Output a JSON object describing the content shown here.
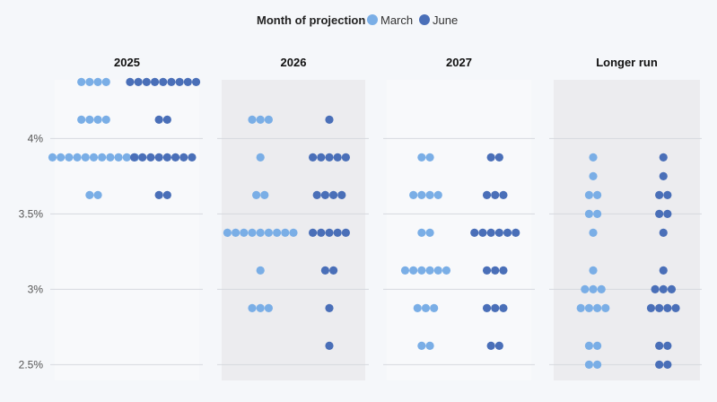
{
  "chart_data": {
    "type": "scatter",
    "legend": {
      "title": "Month of projection",
      "items": [
        {
          "label": "March",
          "color": "#7aaee6"
        },
        {
          "label": "June",
          "color": "#4a6fb8"
        }
      ],
      "placement": "top-center"
    },
    "y_axis": {
      "ticks": [
        {
          "value": 4.0,
          "label": "4%"
        },
        {
          "value": 3.5,
          "label": "3.5%"
        },
        {
          "value": 3.0,
          "label": "3%"
        },
        {
          "value": 2.5,
          "label": "2.5%"
        }
      ],
      "range": [
        2.45,
        4.4
      ]
    },
    "grid": true,
    "panels": [
      {
        "title": "2025",
        "series": [
          {
            "name": "March",
            "points": [
              {
                "y": 4.375,
                "count": 4
              },
              {
                "y": 4.125,
                "count": 4
              },
              {
                "y": 3.875,
                "count": 11
              },
              {
                "y": 3.625,
                "count": 2
              }
            ]
          },
          {
            "name": "June",
            "points": [
              {
                "y": 4.375,
                "count": 9
              },
              {
                "y": 4.125,
                "count": 2
              },
              {
                "y": 3.875,
                "count": 8
              },
              {
                "y": 3.625,
                "count": 2
              }
            ]
          }
        ]
      },
      {
        "title": "2026",
        "series": [
          {
            "name": "March",
            "points": [
              {
                "y": 4.125,
                "count": 3
              },
              {
                "y": 3.875,
                "count": 1
              },
              {
                "y": 3.625,
                "count": 2
              },
              {
                "y": 3.375,
                "count": 9
              },
              {
                "y": 3.125,
                "count": 1
              },
              {
                "y": 2.875,
                "count": 3
              }
            ]
          },
          {
            "name": "June",
            "points": [
              {
                "y": 4.125,
                "count": 1
              },
              {
                "y": 3.875,
                "count": 5
              },
              {
                "y": 3.625,
                "count": 4
              },
              {
                "y": 3.375,
                "count": 5
              },
              {
                "y": 3.125,
                "count": 2
              },
              {
                "y": 2.875,
                "count": 1
              },
              {
                "y": 2.625,
                "count": 1
              }
            ]
          }
        ]
      },
      {
        "title": "2027",
        "series": [
          {
            "name": "March",
            "points": [
              {
                "y": 3.875,
                "count": 2
              },
              {
                "y": 3.625,
                "count": 4
              },
              {
                "y": 3.375,
                "count": 2
              },
              {
                "y": 3.125,
                "count": 6
              },
              {
                "y": 2.875,
                "count": 3
              },
              {
                "y": 2.625,
                "count": 2
              }
            ]
          },
          {
            "name": "June",
            "points": [
              {
                "y": 3.875,
                "count": 2
              },
              {
                "y": 3.625,
                "count": 3
              },
              {
                "y": 3.375,
                "count": 6
              },
              {
                "y": 3.125,
                "count": 3
              },
              {
                "y": 2.875,
                "count": 3
              },
              {
                "y": 2.625,
                "count": 2
              }
            ]
          }
        ]
      },
      {
        "title": "Longer run",
        "series": [
          {
            "name": "March",
            "points": [
              {
                "y": 3.875,
                "count": 1
              },
              {
                "y": 3.75,
                "count": 1
              },
              {
                "y": 3.625,
                "count": 2
              },
              {
                "y": 3.5,
                "count": 2
              },
              {
                "y": 3.375,
                "count": 1
              },
              {
                "y": 3.125,
                "count": 1
              },
              {
                "y": 3.0,
                "count": 3
              },
              {
                "y": 2.875,
                "count": 4
              },
              {
                "y": 2.625,
                "count": 2
              },
              {
                "y": 2.5,
                "count": 2
              }
            ]
          },
          {
            "name": "June",
            "points": [
              {
                "y": 3.875,
                "count": 1
              },
              {
                "y": 3.75,
                "count": 1
              },
              {
                "y": 3.625,
                "count": 2
              },
              {
                "y": 3.5,
                "count": 2
              },
              {
                "y": 3.375,
                "count": 1
              },
              {
                "y": 3.125,
                "count": 1
              },
              {
                "y": 3.0,
                "count": 3
              },
              {
                "y": 2.875,
                "count": 4
              },
              {
                "y": 2.625,
                "count": 2
              },
              {
                "y": 2.5,
                "count": 2
              }
            ]
          }
        ]
      }
    ]
  }
}
